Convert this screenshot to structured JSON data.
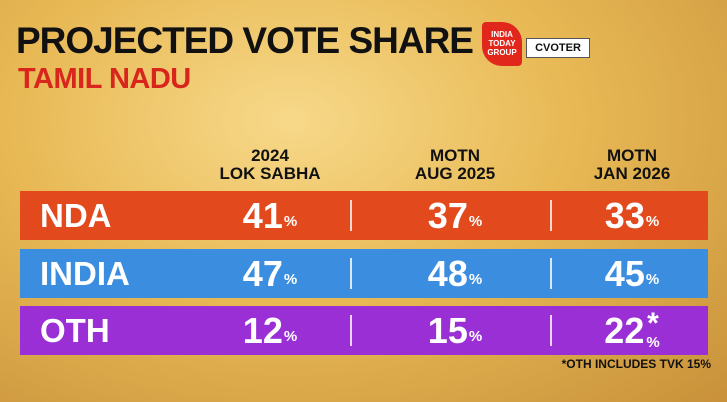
{
  "header": {
    "title": "PROJECTED VOTE SHARE",
    "subtitle": "TAMIL NADU",
    "logo_india_today": [
      "INDIA",
      "TODAY",
      "GROUP"
    ],
    "logo_cvoter": "CVOTER"
  },
  "table": {
    "columns": [
      [
        "2024",
        "LOK SABHA"
      ],
      [
        "MOTN",
        "AUG 2025"
      ],
      [
        "MOTN",
        "JAN 2026"
      ]
    ],
    "rows": [
      {
        "label": "NDA",
        "color": "#e2491d",
        "cells": [
          {
            "value": 41,
            "unit": "%"
          },
          {
            "value": 37,
            "unit": "%"
          },
          {
            "value": 33,
            "unit": "%"
          }
        ]
      },
      {
        "label": "INDIA",
        "color": "#3b8de0",
        "cells": [
          {
            "value": 47,
            "unit": "%"
          },
          {
            "value": 48,
            "unit": "%"
          },
          {
            "value": 45,
            "unit": "%"
          }
        ]
      },
      {
        "label": "OTH",
        "color": "#9a2fd6",
        "cells": [
          {
            "value": 12,
            "unit": "%"
          },
          {
            "value": 15,
            "unit": "%"
          },
          {
            "value": 22,
            "note": "*",
            "unit": "%"
          }
        ]
      }
    ]
  },
  "footnote": "*OTH INCLUDES TVK 15%"
}
